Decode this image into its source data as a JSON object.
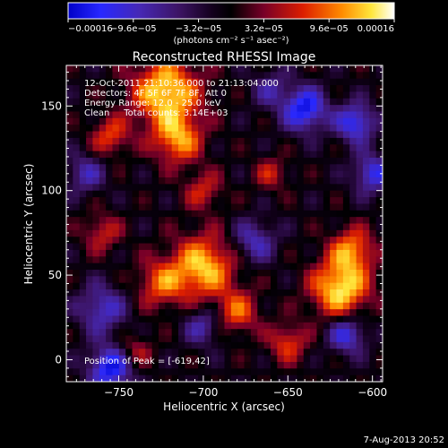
{
  "chart_data": {
    "type": "heatmap",
    "title": "Reconstructed RHESSI Image",
    "xlabel": "Heliocentric X (arcsec)",
    "ylabel": "Heliocentric Y (arcsec)",
    "xlim": [
      -781,
      -594
    ],
    "ylim": [
      -13,
      174
    ],
    "xticks": [
      -750,
      -700,
      -650,
      -600
    ],
    "xtick_labels": [
      "−750",
      "−700",
      "−650",
      "−600"
    ],
    "yticks": [
      0,
      50,
      100,
      150
    ],
    "ytick_labels": [
      "0",
      "50",
      "100",
      "150"
    ],
    "colorbar": {
      "min": -0.00016,
      "max": 0.00016,
      "ticks": [
        -0.00016,
        -9.6e-05,
        -3.2e-05,
        3.2e-05,
        9.6e-05,
        0.00016
      ],
      "tick_labels": [
        "−0.00016",
        "−9.6e−05",
        "−3.2e−05",
        "3.2e−05",
        "9.6e−05",
        "0.00016"
      ],
      "unit_label": "(photons cm⁻² s⁻¹ asec⁻²)",
      "colormap": "blue-purple-red-yellow-white"
    },
    "annotations": [
      "12-Oct-2011 21:10:36.000  to  21:13:04.000",
      "Detectors: 4F 5F 6F 7F 8F, Att 0",
      "Energy Range: 12.0 - 25.0 keV",
      "Clean     Total counts: 3.14E+03"
    ],
    "peak_label": "Position of Peak = [-619,42]",
    "peak": {
      "x": -619,
      "y": 42
    },
    "sources": [
      {
        "x": -722,
        "y": 158,
        "amp": 1.0,
        "s": 14
      },
      {
        "x": -715,
        "y": 130,
        "amp": 0.75,
        "s": 10
      },
      {
        "x": -755,
        "y": 132,
        "amp": 0.55,
        "s": 8
      },
      {
        "x": -700,
        "y": 55,
        "amp": 0.9,
        "s": 13
      },
      {
        "x": -725,
        "y": 45,
        "amp": 0.6,
        "s": 10
      },
      {
        "x": -680,
        "y": 28,
        "amp": 0.6,
        "s": 9
      },
      {
        "x": -619,
        "y": 42,
        "amp": 1.0,
        "s": 12
      },
      {
        "x": -612,
        "y": 65,
        "amp": 0.7,
        "s": 9
      },
      {
        "x": -650,
        "y": 10,
        "amp": 0.55,
        "s": 8
      },
      {
        "x": -700,
        "y": 100,
        "amp": 0.45,
        "s": 8
      },
      {
        "x": -660,
        "y": 110,
        "amp": 0.4,
        "s": 7
      },
      {
        "x": -760,
        "y": 75,
        "amp": 0.45,
        "s": 8
      },
      {
        "x": -740,
        "y": 5,
        "amp": 0.4,
        "s": 7
      },
      {
        "x": -760,
        "y": 30,
        "amp": -0.6,
        "s": 10
      },
      {
        "x": -755,
        "y": -5,
        "amp": -0.9,
        "s": 9
      },
      {
        "x": -640,
        "y": 148,
        "amp": -0.9,
        "s": 9
      },
      {
        "x": -610,
        "y": 140,
        "amp": -0.8,
        "s": 8
      },
      {
        "x": -600,
        "y": 110,
        "amp": -0.7,
        "s": 8
      },
      {
        "x": -615,
        "y": 15,
        "amp": -0.7,
        "s": 8
      },
      {
        "x": -770,
        "y": 110,
        "amp": -0.5,
        "s": 8
      },
      {
        "x": -670,
        "y": 70,
        "amp": -0.55,
        "s": 9
      },
      {
        "x": -700,
        "y": 20,
        "amp": -0.5,
        "s": 8
      },
      {
        "x": -660,
        "y": 160,
        "amp": -0.4,
        "s": 8
      }
    ]
  },
  "footer": {
    "timestamp": "7-Aug-2013 20:52"
  },
  "colors": {
    "background": "#000000",
    "text": "#ffffff"
  }
}
